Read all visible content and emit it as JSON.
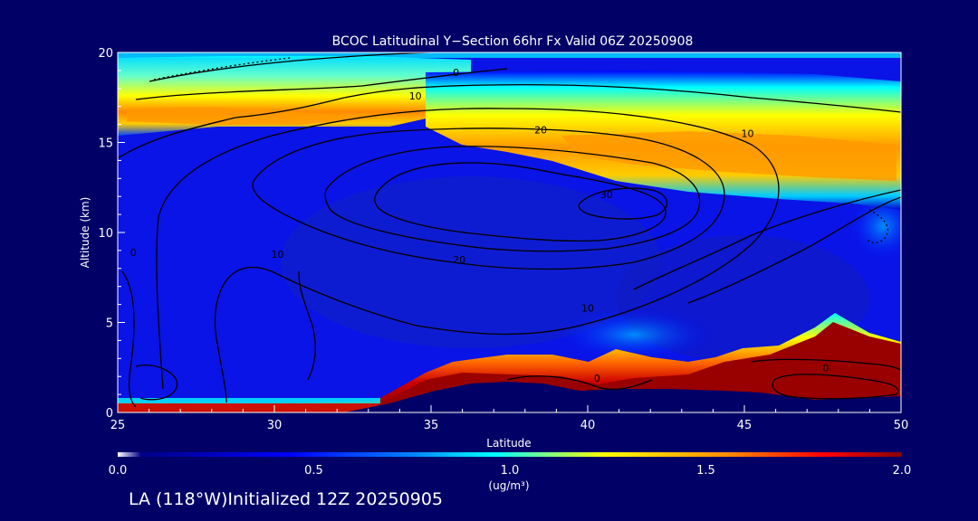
{
  "chart_data": {
    "type": "heatmap",
    "title": "BCOC Latitudinal Y−Section 66hr  Fx Valid 06Z 20250908",
    "xlabel": "Latitude",
    "ylabel": "Altitude (km)",
    "xlim": [
      25,
      50
    ],
    "ylim": [
      0,
      20
    ],
    "x_ticks": [
      25,
      30,
      35,
      40,
      45,
      50
    ],
    "y_ticks": [
      0,
      5,
      10,
      15,
      20
    ],
    "grid": false,
    "colorbar": {
      "label": "(ug/m³)",
      "range": [
        0.0,
        2.0
      ],
      "ticks": [
        "0.0",
        "0.5",
        "1.0",
        "1.5",
        "2.0"
      ],
      "colors": [
        "#ffffff",
        "#0000aa",
        "#0000ff",
        "#0088ff",
        "#00ffff",
        "#ffff00",
        "#ff8800",
        "#ff0000",
        "#880000"
      ]
    },
    "background_color": "#000066",
    "terrain_color": "#000066",
    "layers": [
      {
        "name": "surface_layer_west",
        "lat": [
          25,
          33
        ],
        "alt_range": [
          0.0,
          0.4
        ],
        "value": 1.9
      },
      {
        "name": "boundary_layer_east",
        "lat": [
          33,
          50
        ],
        "alt_range": [
          0.5,
          3.0
        ],
        "value": 1.8
      },
      {
        "name": "upper_layer_north",
        "lat": [
          38,
          50
        ],
        "alt_range": [
          12.5,
          16.0
        ],
        "value": 1.4
      },
      {
        "name": "upper_layer_south",
        "lat": [
          25,
          36
        ],
        "alt_range": [
          15.5,
          19.0
        ],
        "value": 1.3
      }
    ],
    "contour_labels": [
      {
        "text": "0",
        "lat": 35.8,
        "alt": 18.9
      },
      {
        "text": "10",
        "lat": 34.5,
        "alt": 17.6
      },
      {
        "text": "20",
        "lat": 38.5,
        "alt": 15.7
      },
      {
        "text": "10",
        "lat": 45.1,
        "alt": 15.5
      },
      {
        "text": "30",
        "lat": 40.6,
        "alt": 12.1
      },
      {
        "text": "20",
        "lat": 35.9,
        "alt": 8.5
      },
      {
        "text": "10",
        "lat": 30.1,
        "alt": 8.8
      },
      {
        "text": "10",
        "lat": 40.0,
        "alt": 5.8
      },
      {
        "text": "0",
        "lat": 25.5,
        "alt": 8.9
      },
      {
        "text": "0",
        "lat": 40.3,
        "alt": 1.9
      },
      {
        "text": "0",
        "lat": 47.6,
        "alt": 2.5
      }
    ]
  },
  "footer": {
    "label": "LA (118°W)Initialized 12Z 20250905"
  }
}
